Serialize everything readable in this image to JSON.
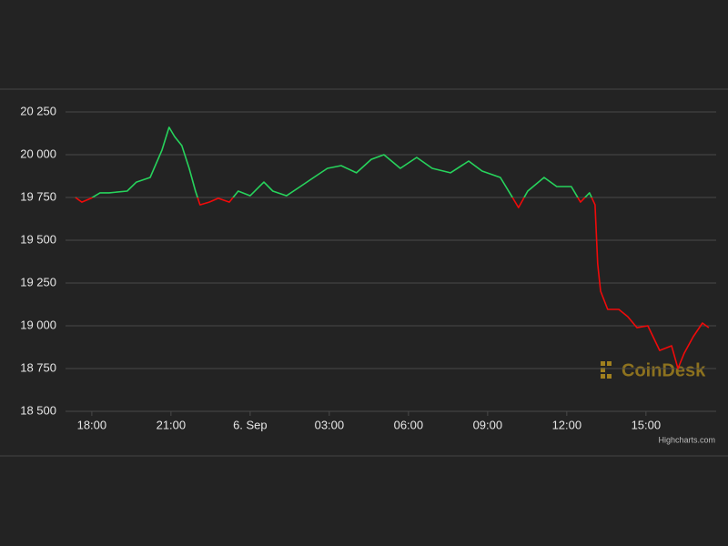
{
  "chart_data": {
    "type": "line",
    "x": [
      -0.62,
      -0.38,
      -0.03,
      0.31,
      0.66,
      1.34,
      1.69,
      2.21,
      2.66,
      2.93,
      3.14,
      3.41,
      3.69,
      3.93,
      4.1,
      4.45,
      4.79,
      5.21,
      5.55,
      6.0,
      6.52,
      6.86,
      7.38,
      7.9,
      8.41,
      8.93,
      9.45,
      10.03,
      10.59,
      11.07,
      11.69,
      12.31,
      12.9,
      13.59,
      14.28,
      14.79,
      15.48,
      15.9,
      16.17,
      16.52,
      17.14,
      17.62,
      18.17,
      18.52,
      18.86,
      19.07,
      19.17,
      19.28,
      19.55,
      19.97,
      20.31,
      20.66,
      21.07,
      21.52,
      21.97,
      22.21,
      22.45,
      22.79,
      23.14,
      23.38
    ],
    "series": [
      {
        "color": "#27d35c",
        "negative_color": "#f00a0a",
        "threshold": 19750,
        "values": [
          19750,
          19723,
          19745,
          19777,
          19777,
          19787,
          19840,
          19867,
          20027,
          20160,
          20106,
          20053,
          19920,
          19787,
          19707,
          19723,
          19745,
          19723,
          19787,
          19760,
          19840,
          19787,
          19760,
          19814,
          19867,
          19920,
          19936,
          19894,
          19973,
          20000,
          19920,
          19984,
          19920,
          19894,
          19963,
          19904,
          19867,
          19760,
          19691,
          19787,
          19867,
          19814,
          19814,
          19723,
          19777,
          19707,
          19362,
          19202,
          19096,
          19096,
          19053,
          18989,
          19000,
          18856,
          18883,
          18750,
          18840,
          18936,
          19016,
          18989
        ]
      }
    ],
    "xlim": [
      -0.72,
      23.66
    ],
    "xticks": [
      {
        "value": 0,
        "label": "18:00"
      },
      {
        "value": 3,
        "label": "21:00"
      },
      {
        "value": 6,
        "label": "6. Sep"
      },
      {
        "value": 9,
        "label": "03:00"
      },
      {
        "value": 12,
        "label": "06:00"
      },
      {
        "value": 15,
        "label": "09:00"
      },
      {
        "value": 18,
        "label": "12:00"
      },
      {
        "value": 21,
        "label": "15:00"
      }
    ],
    "ylim": [
      18500,
      20250
    ],
    "yticks": [
      {
        "value": 18500,
        "label": "18 500"
      },
      {
        "value": 18750,
        "label": "18 750"
      },
      {
        "value": 19000,
        "label": "19 000"
      },
      {
        "value": 19250,
        "label": "19 250"
      },
      {
        "value": 19500,
        "label": "19 500"
      },
      {
        "value": 19750,
        "label": "19 750"
      },
      {
        "value": 20000,
        "label": "20 000"
      },
      {
        "value": 20250,
        "label": "20 250"
      }
    ],
    "grid": true,
    "watermark": "CoinDesk",
    "credits": "Highcharts.com"
  }
}
